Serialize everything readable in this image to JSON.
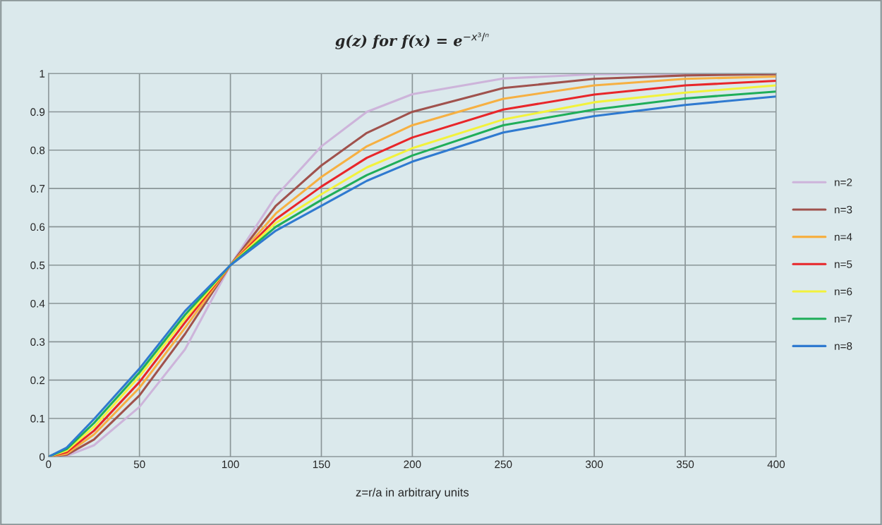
{
  "chart_data": {
    "type": "line",
    "title": "g(z) for f(x) = e$^{−x³/ⁿ}$",
    "xlabel": "z=r/a in arbitrary units",
    "x": [
      0,
      10,
      25,
      50,
      75,
      100,
      125,
      150,
      175,
      200,
      250,
      300,
      350,
      400
    ],
    "series": [
      {
        "name": "n=2",
        "color": "#cdb4da",
        "values": [
          0,
          0.002,
          0.03,
          0.13,
          0.28,
          0.5,
          0.68,
          0.81,
          0.9,
          0.946,
          0.987,
          0.998,
          1,
          1
        ]
      },
      {
        "name": "n=3",
        "color": "#a0524d",
        "values": [
          0,
          0.005,
          0.045,
          0.16,
          0.32,
          0.5,
          0.655,
          0.76,
          0.845,
          0.9,
          0.962,
          0.986,
          0.995,
          0.998
        ]
      },
      {
        "name": "n=4",
        "color": "#f6b042",
        "values": [
          0,
          0.008,
          0.058,
          0.18,
          0.336,
          0.5,
          0.635,
          0.73,
          0.81,
          0.865,
          0.934,
          0.969,
          0.986,
          0.992
        ]
      },
      {
        "name": "n=5",
        "color": "#e8262a",
        "values": [
          0,
          0.012,
          0.068,
          0.195,
          0.35,
          0.5,
          0.62,
          0.705,
          0.78,
          0.833,
          0.906,
          0.945,
          0.969,
          0.981
        ]
      },
      {
        "name": "n=6",
        "color": "#f2f23c",
        "values": [
          0,
          0.016,
          0.078,
          0.21,
          0.36,
          0.5,
          0.61,
          0.685,
          0.755,
          0.805,
          0.88,
          0.925,
          0.95,
          0.969
        ]
      },
      {
        "name": "n=7",
        "color": "#1fae5a",
        "values": [
          0,
          0.02,
          0.088,
          0.22,
          0.37,
          0.5,
          0.6,
          0.67,
          0.735,
          0.786,
          0.865,
          0.906,
          0.935,
          0.953
        ]
      },
      {
        "name": "n=8",
        "color": "#2f7ad0",
        "values": [
          0,
          0.024,
          0.098,
          0.23,
          0.38,
          0.5,
          0.59,
          0.655,
          0.72,
          0.77,
          0.846,
          0.889,
          0.918,
          0.94
        ]
      }
    ],
    "xlim": [
      0,
      400
    ],
    "xticks": [
      0,
      50,
      100,
      150,
      200,
      250,
      300,
      350,
      400
    ],
    "ylim": [
      0,
      1
    ],
    "yticks": [
      0,
      0.1,
      0.2,
      0.3,
      0.4,
      0.5,
      0.6,
      0.7,
      0.8,
      0.9,
      1
    ],
    "grid": true,
    "legend": "right",
    "marker": "none",
    "line_style": "solid"
  }
}
